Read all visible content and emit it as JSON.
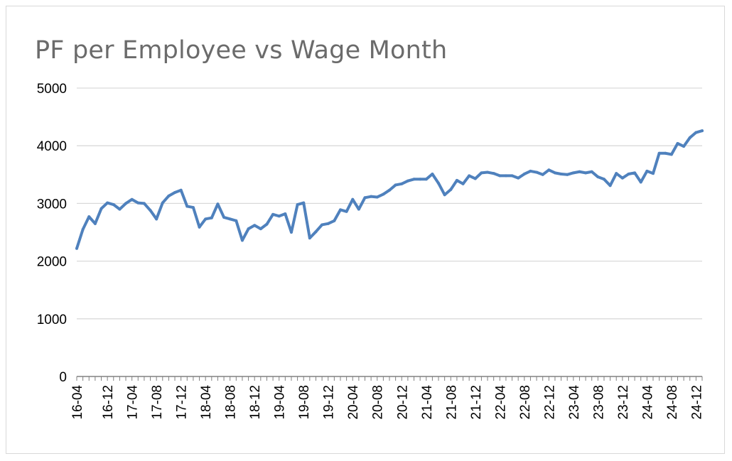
{
  "chart_data": {
    "type": "line",
    "title": "PF per Employee vs Wage Month",
    "xlabel": "",
    "ylabel": "",
    "ylim": [
      0,
      5000
    ],
    "y_ticks": [
      0,
      1000,
      2000,
      3000,
      4000,
      5000
    ],
    "grid": true,
    "legend": "none",
    "x_tick_labels": [
      "16-04",
      "16-12",
      "17-04",
      "17-08",
      "17-12",
      "18-04",
      "18-08",
      "18-12",
      "19-04",
      "19-08",
      "19-12",
      "20-04",
      "20-08",
      "20-12",
      "21-04",
      "21-08",
      "21-12",
      "22-04",
      "22-08",
      "22-12",
      "23-04",
      "23-08",
      "23-12",
      "24-04",
      "24-08",
      "24-12"
    ],
    "x_tick_indices": [
      0,
      5,
      9,
      13,
      17,
      21,
      25,
      29,
      33,
      37,
      41,
      45,
      49,
      53,
      57,
      61,
      65,
      69,
      73,
      77,
      81,
      85,
      89,
      93,
      97,
      101
    ],
    "series": [
      {
        "name": "",
        "color": "#4f81bd",
        "values": [
          2220,
          2550,
          2770,
          2650,
          2910,
          3010,
          2980,
          2900,
          3000,
          3070,
          3010,
          3000,
          2880,
          2730,
          3010,
          3130,
          3190,
          3230,
          2950,
          2930,
          2590,
          2730,
          2750,
          2990,
          2760,
          2730,
          2700,
          2360,
          2560,
          2620,
          2560,
          2640,
          2810,
          2780,
          2820,
          2500,
          2980,
          3010,
          2400,
          2510,
          2630,
          2650,
          2700,
          2890,
          2860,
          3070,
          2900,
          3100,
          3120,
          3110,
          3160,
          3230,
          3320,
          3340,
          3390,
          3420,
          3420,
          3420,
          3510,
          3350,
          3150,
          3240,
          3400,
          3340,
          3480,
          3430,
          3530,
          3540,
          3520,
          3480,
          3480,
          3480,
          3440,
          3510,
          3560,
          3540,
          3500,
          3580,
          3530,
          3510,
          3500,
          3530,
          3550,
          3530,
          3550,
          3460,
          3420,
          3310,
          3520,
          3440,
          3510,
          3530,
          3370,
          3560,
          3520,
          3870,
          3870,
          3850,
          4040,
          3990,
          4140,
          4230,
          4260
        ]
      }
    ]
  }
}
